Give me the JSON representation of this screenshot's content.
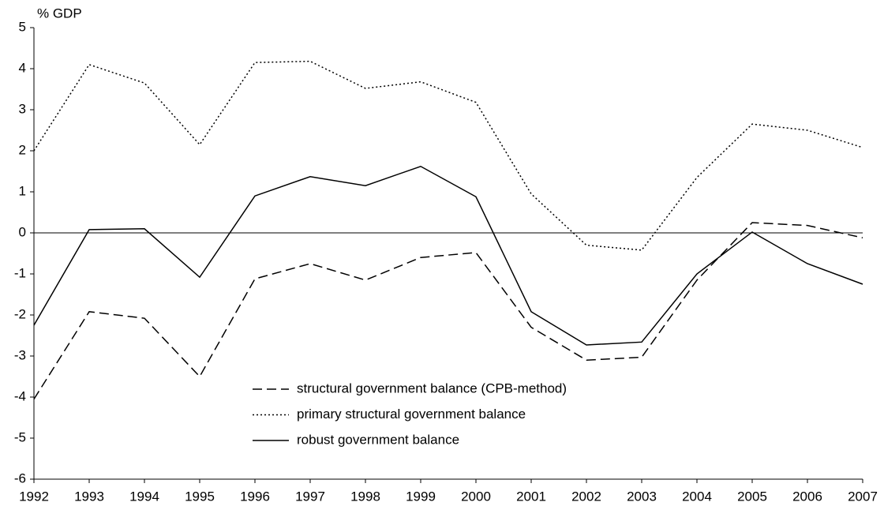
{
  "chart_data": {
    "type": "line",
    "y_label": "% GDP",
    "x": [
      1992,
      1993,
      1994,
      1995,
      1996,
      1997,
      1998,
      1999,
      2000,
      2001,
      2002,
      2003,
      2004,
      2005,
      2006,
      2007
    ],
    "xlim": [
      1992,
      2007
    ],
    "xticks": [
      1992,
      1993,
      1994,
      1995,
      1996,
      1997,
      1998,
      1999,
      2000,
      2001,
      2002,
      2003,
      2004,
      2005,
      2006,
      2007
    ],
    "ylim": [
      -6,
      5
    ],
    "yticks": [
      -6,
      -5,
      -4,
      -3,
      -2,
      -1,
      0,
      1,
      2,
      3,
      4,
      5
    ],
    "series": [
      {
        "name": "structural government balance (CPB-method)",
        "color": "#000000",
        "dash": "dashed",
        "values": [
          -4.05,
          -1.92,
          -2.08,
          -3.5,
          -1.12,
          -0.75,
          -1.15,
          -0.6,
          -0.48,
          -2.3,
          -3.1,
          -3.03,
          -1.15,
          0.25,
          0.18,
          -0.12
        ]
      },
      {
        "name": "primary structural government balance",
        "color": "#000000",
        "dash": "dotted",
        "values": [
          2.0,
          4.1,
          3.65,
          2.15,
          4.15,
          4.18,
          3.52,
          3.68,
          3.18,
          0.95,
          -0.3,
          -0.42,
          1.35,
          2.65,
          2.5,
          2.08
        ]
      },
      {
        "name": "robust government balance",
        "color": "#000000",
        "dash": "solid",
        "values": [
          -2.25,
          0.08,
          0.1,
          -1.08,
          0.9,
          1.37,
          1.15,
          1.62,
          0.88,
          -1.92,
          -2.73,
          -2.66,
          -1.0,
          0.02,
          -0.75,
          -1.25
        ]
      }
    ]
  }
}
